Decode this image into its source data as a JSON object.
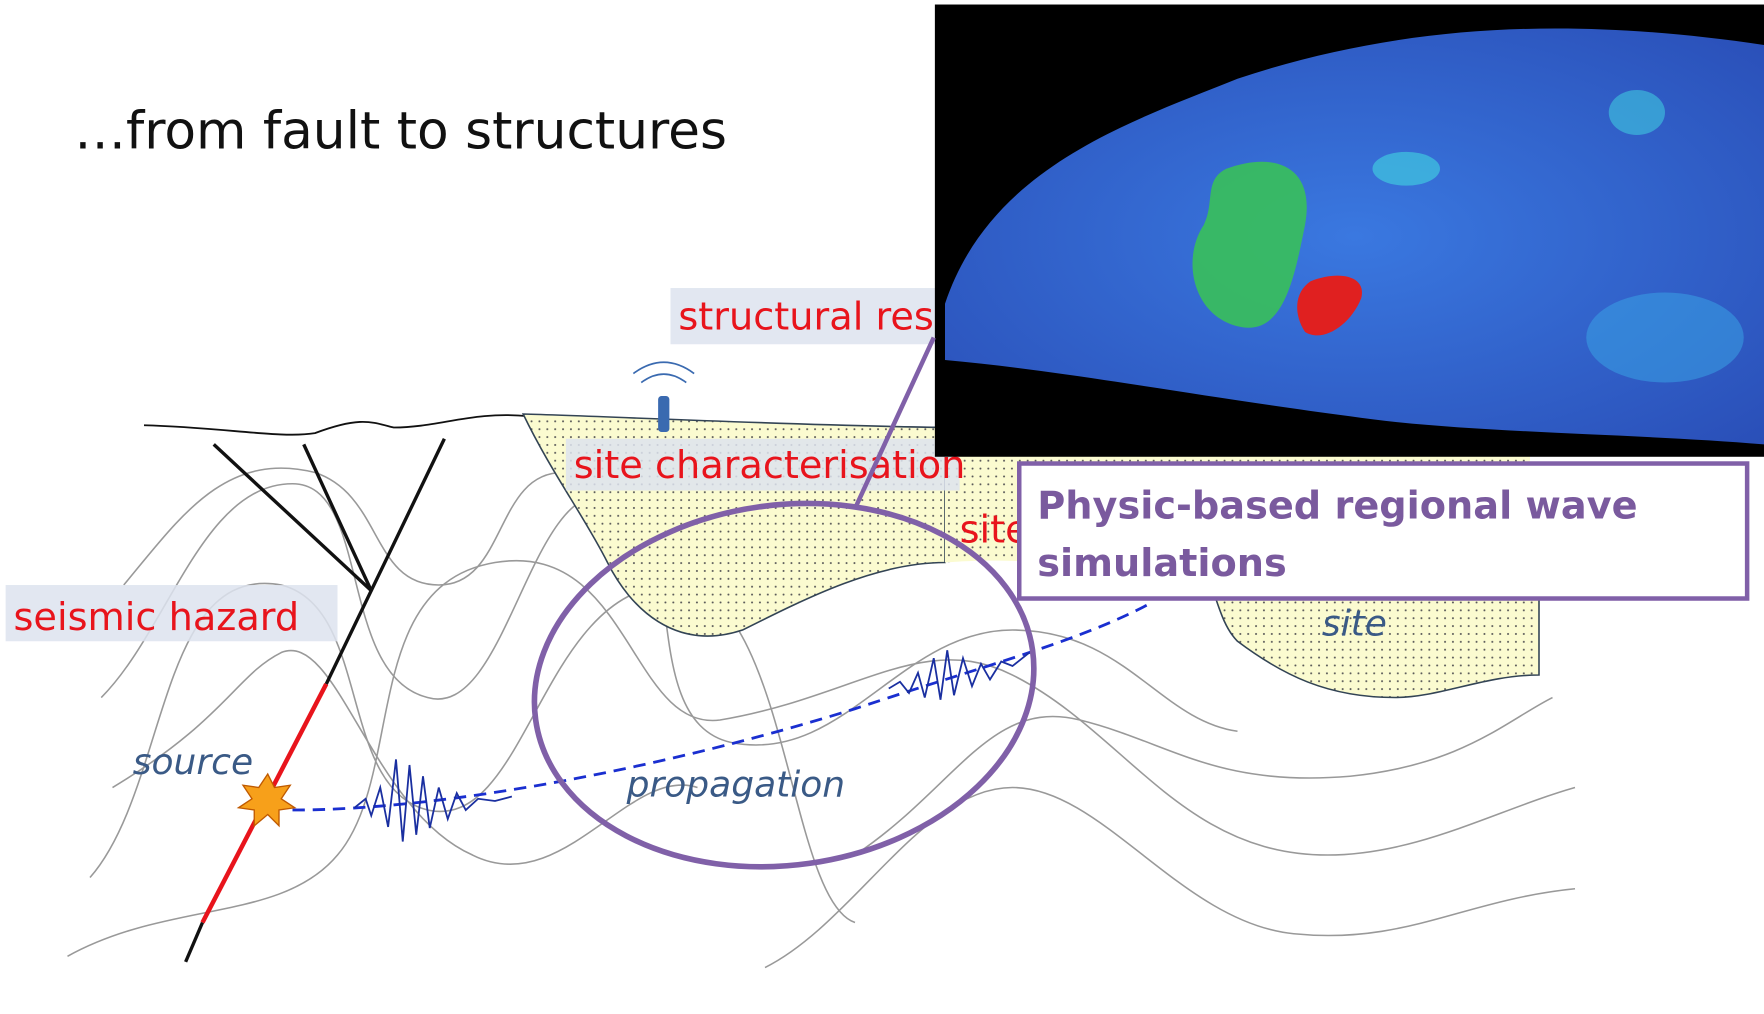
{
  "title": "…from fault to structures",
  "labels": {
    "structural_response": "structural resp",
    "site_characterisation": "site characterisation",
    "site_partial": "site",
    "seismic_hazard": "seismic hazard",
    "source": "source",
    "propagation": "propagation",
    "site": "site"
  },
  "callout": {
    "line1": "Physic-based regional wave",
    "line2": "simulations"
  }
}
